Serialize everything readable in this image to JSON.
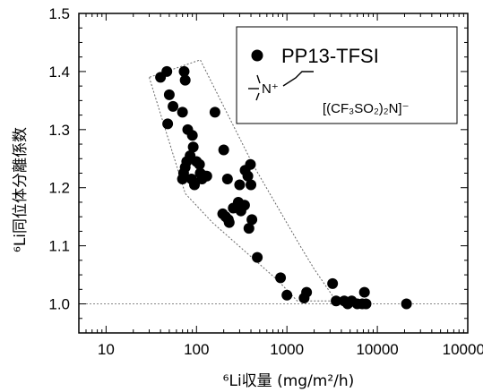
{
  "chart_data": {
    "type": "scatter",
    "x_scale": "log",
    "xlim": [
      5,
      100000
    ],
    "ylim": [
      0.95,
      1.5
    ],
    "x_ticks": [
      10,
      100,
      1000,
      10000,
      100000
    ],
    "x_tick_labels": [
      "10",
      "100",
      "1000",
      "10000",
      "100000"
    ],
    "y_ticks": [
      1.0,
      1.1,
      1.2,
      1.3,
      1.4,
      1.5
    ],
    "y_tick_labels": [
      "1.0",
      "1.1",
      "1.2",
      "1.3",
      "1.4",
      "1.5"
    ],
    "xlabel": "⁶Li収量 (mg/m²/h)",
    "ylabel": "⁶Li同位体分離係数",
    "reference_line_y": 1.0,
    "legend_position": "top-right",
    "series": [
      {
        "name": "PP13-TFSI",
        "points": [
          [
            40,
            1.39
          ],
          [
            47,
            1.4
          ],
          [
            50,
            1.36
          ],
          [
            48,
            1.31
          ],
          [
            55,
            1.34
          ],
          [
            73,
            1.4
          ],
          [
            75,
            1.385
          ],
          [
            70,
            1.33
          ],
          [
            80,
            1.3
          ],
          [
            90,
            1.29
          ],
          [
            92,
            1.27
          ],
          [
            85,
            1.255
          ],
          [
            78,
            1.245
          ],
          [
            75,
            1.235
          ],
          [
            72,
            1.225
          ],
          [
            70,
            1.215
          ],
          [
            88,
            1.215
          ],
          [
            95,
            1.205
          ],
          [
            100,
            1.245
          ],
          [
            108,
            1.24
          ],
          [
            110,
            1.225
          ],
          [
            125,
            1.22
          ],
          [
            115,
            1.215
          ],
          [
            130,
            1.22
          ],
          [
            160,
            1.33
          ],
          [
            200,
            1.265
          ],
          [
            220,
            1.215
          ],
          [
            195,
            1.155
          ],
          [
            210,
            1.15
          ],
          [
            225,
            1.145
          ],
          [
            230,
            1.14
          ],
          [
            255,
            1.165
          ],
          [
            290,
            1.175
          ],
          [
            310,
            1.16
          ],
          [
            300,
            1.205
          ],
          [
            345,
            1.23
          ],
          [
            340,
            1.17
          ],
          [
            370,
            1.22
          ],
          [
            395,
            1.24
          ],
          [
            400,
            1.205
          ],
          [
            380,
            1.13
          ],
          [
            410,
            1.145
          ],
          [
            470,
            1.08
          ],
          [
            850,
            1.045
          ],
          [
            1000,
            1.015
          ],
          [
            1550,
            1.01
          ],
          [
            1650,
            1.02
          ],
          [
            3200,
            1.035
          ],
          [
            3500,
            1.005
          ],
          [
            4300,
            1.005
          ],
          [
            4700,
            1.0
          ],
          [
            5200,
            1.005
          ],
          [
            6000,
            1.0
          ],
          [
            6800,
            1.0
          ],
          [
            7200,
            1.02
          ],
          [
            7500,
            1.0
          ],
          [
            21000,
            1.0
          ]
        ]
      }
    ],
    "envelope": [
      [
        30,
        1.39
      ],
      [
        75,
        1.19
      ],
      [
        150,
        1.14
      ],
      [
        800,
        1.04
      ],
      [
        1300,
        1.005
      ],
      [
        3500,
        1.005
      ],
      [
        2000,
        1.06
      ],
      [
        1400,
        1.1
      ],
      [
        420,
        1.24
      ],
      [
        110,
        1.42
      ]
    ],
    "legend": {
      "label": "PP13-TFSI",
      "cation_label": "N⁺",
      "anion_label": "[(CF₃SO₂)₂N]⁻"
    }
  }
}
